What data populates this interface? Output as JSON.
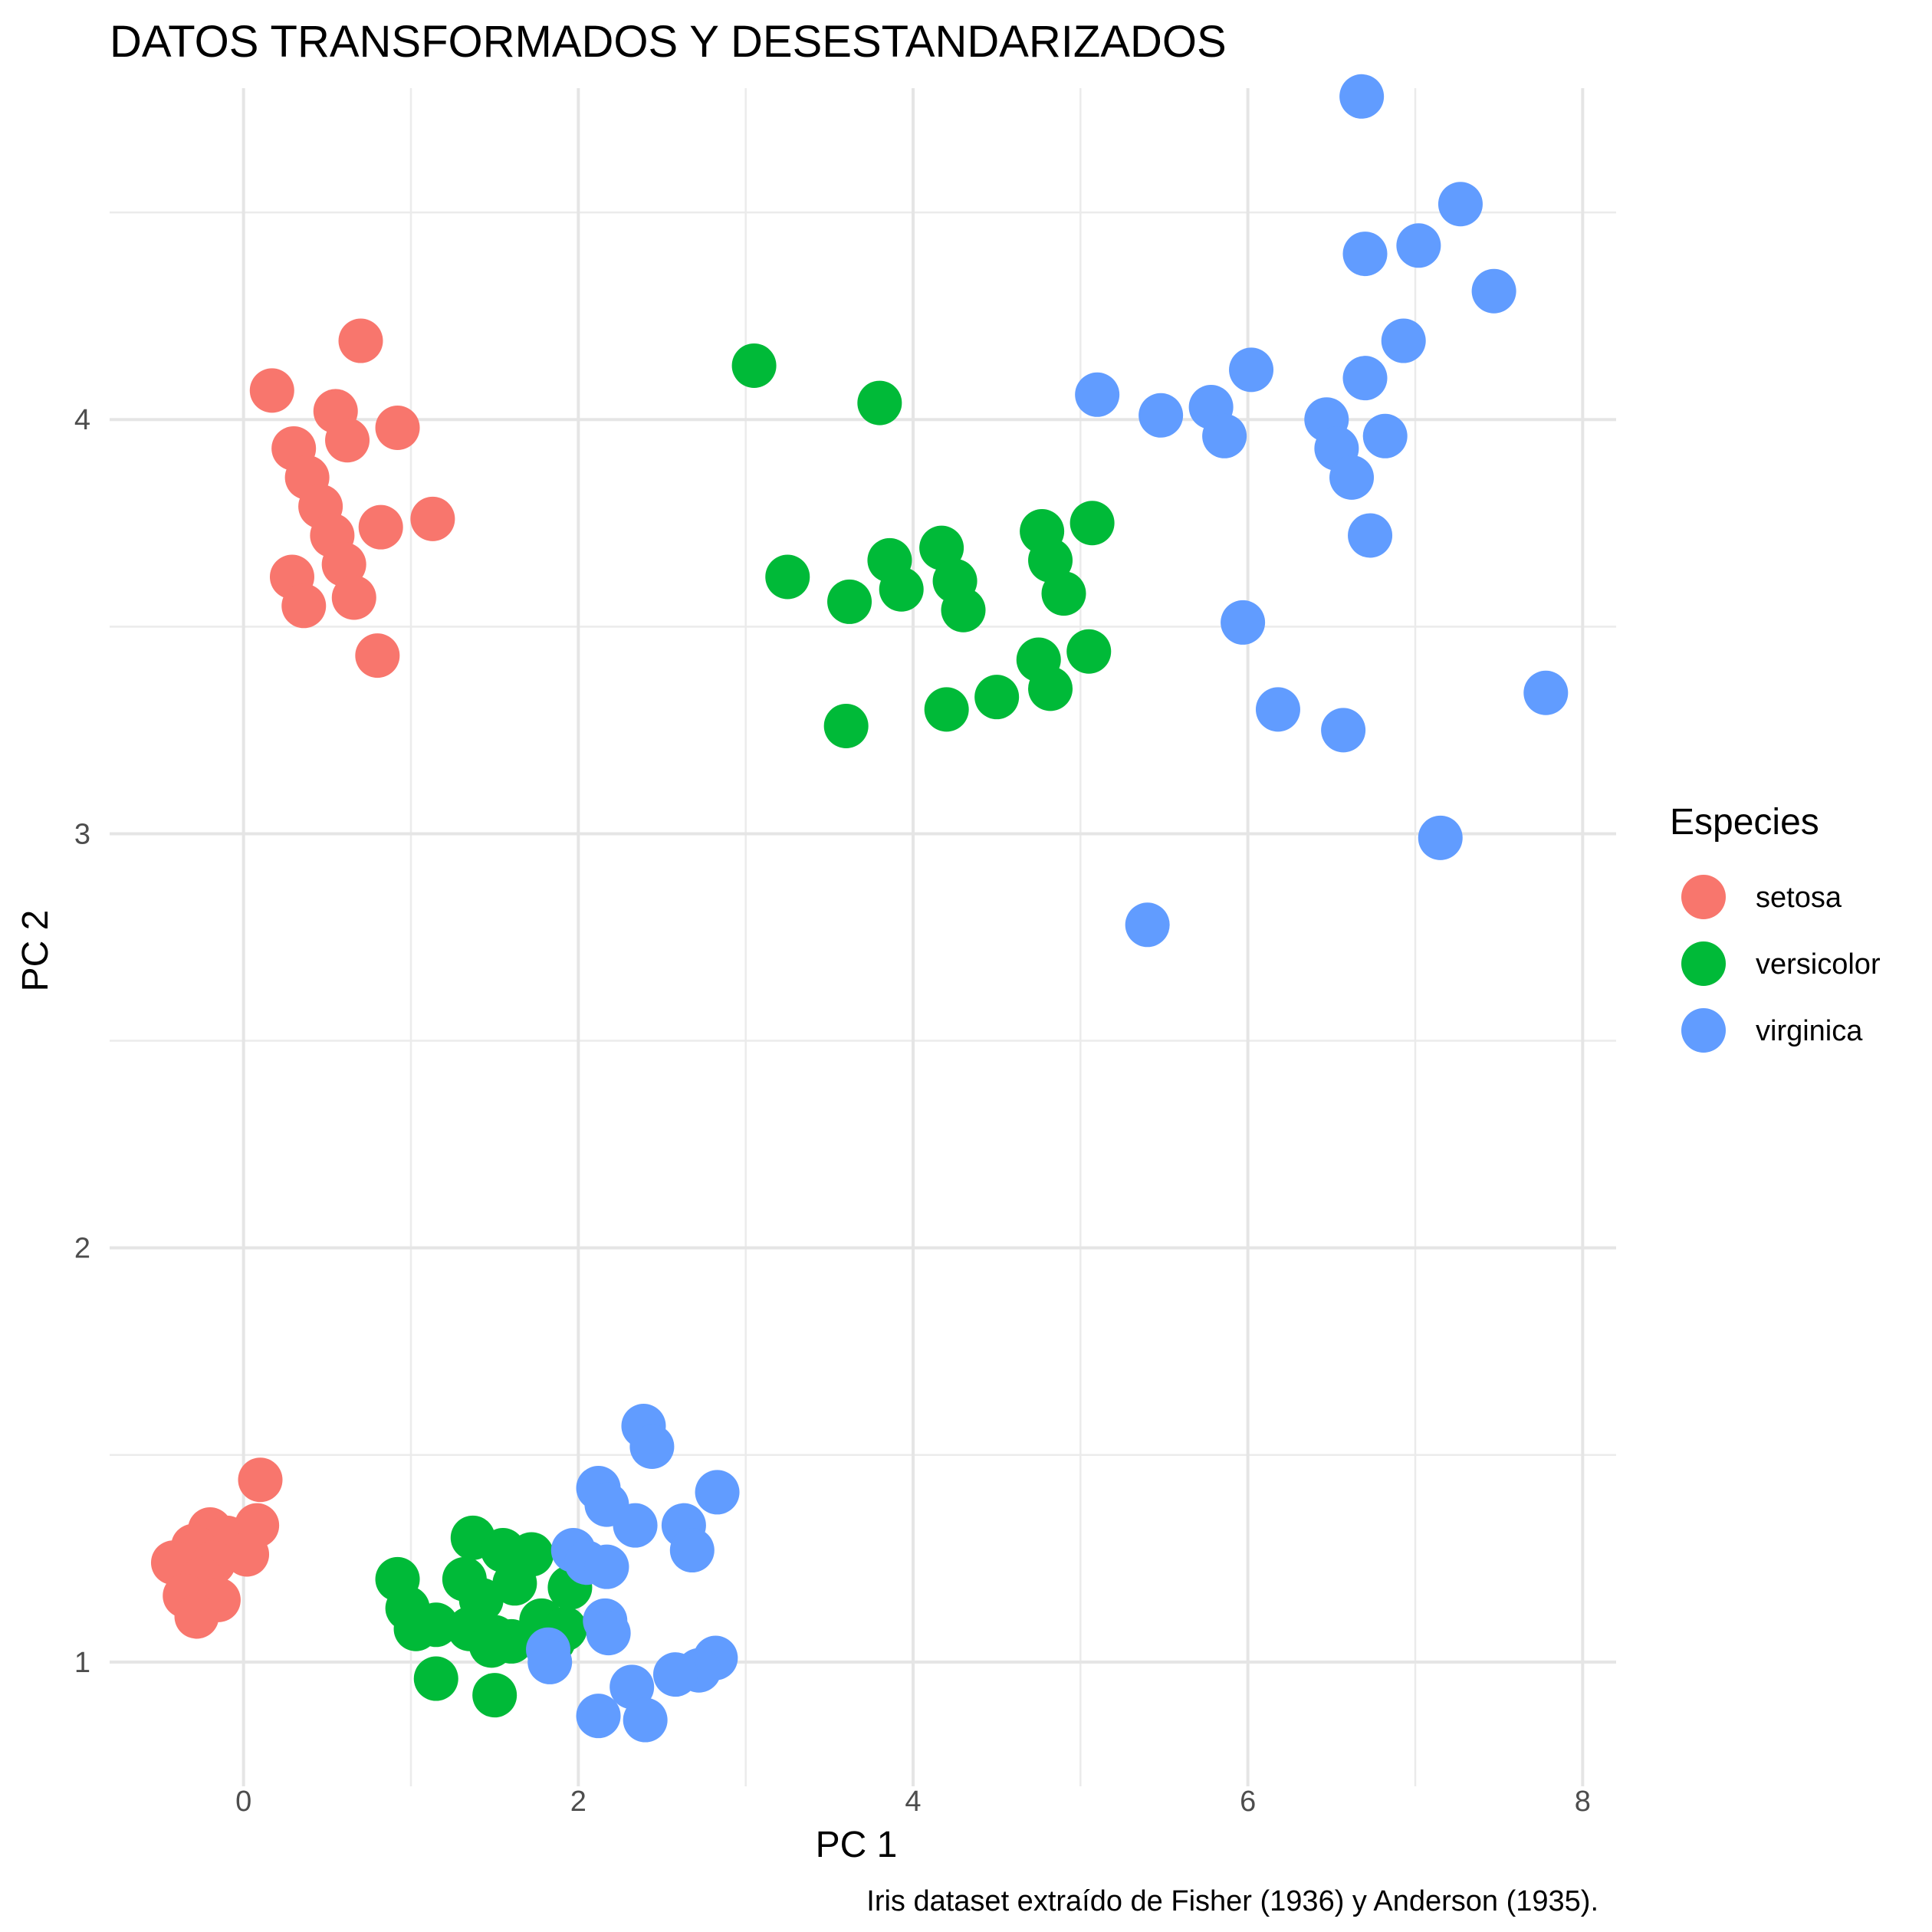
{
  "chart_data": {
    "type": "scatter",
    "title": "DATOS TRANSFORMADOS Y DESESTANDARIZADOS",
    "xlabel": "PC 1",
    "ylabel": "PC 2",
    "caption": "Iris dataset extraído de Fisher (1936) y Anderson (1935).",
    "xlim": [
      -0.8,
      8.2
    ],
    "ylim": [
      0.7,
      4.8
    ],
    "x_ticks": [
      0,
      2,
      4,
      6,
      8
    ],
    "y_ticks": [
      1,
      2,
      3,
      4
    ],
    "grid": true,
    "legend": {
      "title": "Especies",
      "placement": "right"
    },
    "series": [
      {
        "name": "setosa",
        "color": "#F8766D",
        "points": [
          [
            0.7,
            4.19
          ],
          [
            0.17,
            4.07
          ],
          [
            0.55,
            4.02
          ],
          [
            0.92,
            3.98
          ],
          [
            0.62,
            3.95
          ],
          [
            0.3,
            3.93
          ],
          [
            0.38,
            3.86
          ],
          [
            0.46,
            3.79
          ],
          [
            0.53,
            3.72
          ],
          [
            1.13,
            3.76
          ],
          [
            0.82,
            3.74
          ],
          [
            0.6,
            3.65
          ],
          [
            0.29,
            3.62
          ],
          [
            0.66,
            3.57
          ],
          [
            0.36,
            3.55
          ],
          [
            0.8,
            3.43
          ],
          [
            0.1,
            1.44
          ],
          [
            0.08,
            1.33
          ],
          [
            -0.2,
            1.32
          ],
          [
            -0.1,
            1.3
          ],
          [
            -0.3,
            1.28
          ],
          [
            0.02,
            1.26
          ],
          [
            -0.18,
            1.24
          ],
          [
            -0.42,
            1.24
          ],
          [
            -0.25,
            1.2
          ],
          [
            -0.35,
            1.16
          ],
          [
            -0.15,
            1.15
          ],
          [
            -0.28,
            1.11
          ]
        ]
      },
      {
        "name": "versicolor",
        "color": "#00BA38",
        "points": [
          [
            3.05,
            4.13
          ],
          [
            3.8,
            4.04
          ],
          [
            3.25,
            3.62
          ],
          [
            3.62,
            3.56
          ],
          [
            3.86,
            3.66
          ],
          [
            3.93,
            3.59
          ],
          [
            4.17,
            3.69
          ],
          [
            4.25,
            3.61
          ],
          [
            4.3,
            3.54
          ],
          [
            4.77,
            3.73
          ],
          [
            4.82,
            3.66
          ],
          [
            4.9,
            3.58
          ],
          [
            5.07,
            3.75
          ],
          [
            4.75,
            3.42
          ],
          [
            4.82,
            3.35
          ],
          [
            5.05,
            3.44
          ],
          [
            3.6,
            3.26
          ],
          [
            4.2,
            3.3
          ],
          [
            4.5,
            3.33
          ],
          [
            0.92,
            1.2
          ],
          [
            0.98,
            1.13
          ],
          [
            1.03,
            1.08
          ],
          [
            1.15,
            1.09
          ],
          [
            1.37,
            1.3
          ],
          [
            1.32,
            1.2
          ],
          [
            1.55,
            1.27
          ],
          [
            1.72,
            1.26
          ],
          [
            1.42,
            1.15
          ],
          [
            1.62,
            1.19
          ],
          [
            1.35,
            1.08
          ],
          [
            1.5,
            1.06
          ],
          [
            1.6,
            1.05
          ],
          [
            1.48,
            1.04
          ],
          [
            1.78,
            1.1
          ],
          [
            1.85,
            1.05
          ],
          [
            1.95,
            1.18
          ],
          [
            1.92,
            1.08
          ],
          [
            1.15,
            0.96
          ],
          [
            1.5,
            0.92
          ]
        ]
      },
      {
        "name": "virginica",
        "color": "#619CFF",
        "points": [
          [
            6.68,
            4.78
          ],
          [
            7.27,
            4.52
          ],
          [
            7.02,
            4.42
          ],
          [
            6.7,
            4.4
          ],
          [
            7.47,
            4.31
          ],
          [
            6.93,
            4.19
          ],
          [
            6.02,
            4.12
          ],
          [
            6.7,
            4.1
          ],
          [
            5.1,
            4.06
          ],
          [
            5.48,
            4.01
          ],
          [
            5.78,
            4.03
          ],
          [
            5.86,
            3.96
          ],
          [
            6.47,
            4.0
          ],
          [
            6.53,
            3.93
          ],
          [
            6.82,
            3.96
          ],
          [
            6.62,
            3.86
          ],
          [
            6.73,
            3.72
          ],
          [
            5.97,
            3.51
          ],
          [
            6.18,
            3.3
          ],
          [
            6.57,
            3.25
          ],
          [
            7.78,
            3.34
          ],
          [
            7.15,
            2.99
          ],
          [
            5.4,
            2.78
          ],
          [
            2.39,
            1.57
          ],
          [
            2.44,
            1.52
          ],
          [
            2.12,
            1.42
          ],
          [
            2.17,
            1.38
          ],
          [
            2.83,
            1.41
          ],
          [
            2.34,
            1.33
          ],
          [
            2.63,
            1.33
          ],
          [
            1.97,
            1.27
          ],
          [
            2.05,
            1.24
          ],
          [
            2.17,
            1.23
          ],
          [
            2.68,
            1.27
          ],
          [
            2.16,
            1.1
          ],
          [
            2.18,
            1.07
          ],
          [
            1.82,
            1.03
          ],
          [
            1.83,
            1.0
          ],
          [
            2.82,
            1.01
          ],
          [
            2.72,
            0.98
          ],
          [
            2.58,
            0.97
          ],
          [
            2.32,
            0.94
          ],
          [
            2.12,
            0.87
          ],
          [
            2.4,
            0.86
          ]
        ]
      }
    ]
  }
}
